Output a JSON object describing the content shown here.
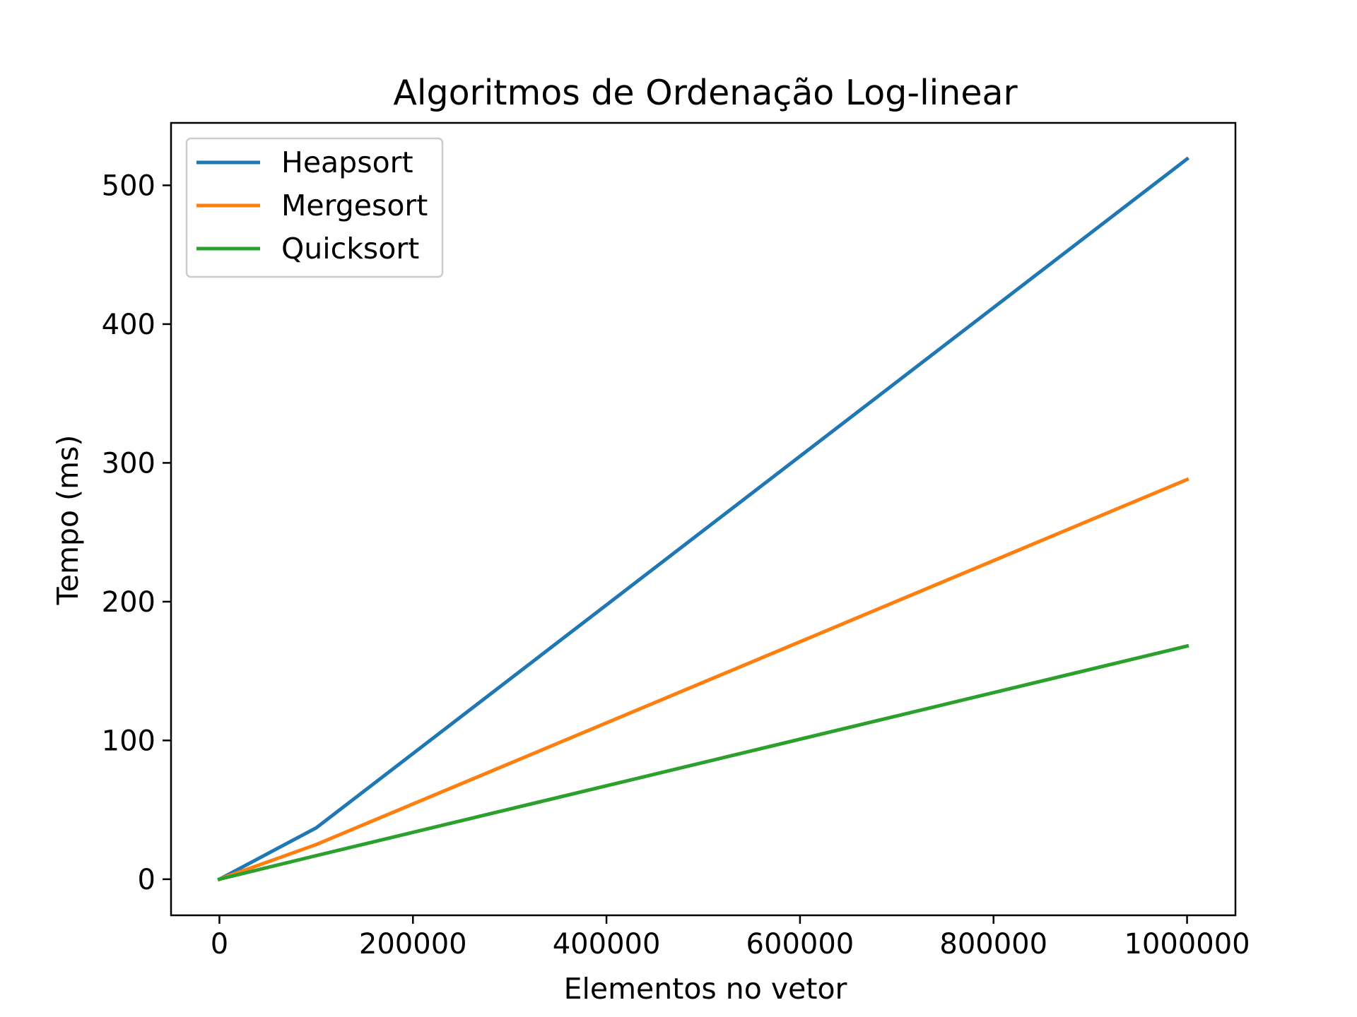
{
  "chart_data": {
    "type": "line",
    "title": "Algoritmos de Ordenação Log-linear",
    "xlabel": "Elementos no vetor",
    "ylabel": "Tempo (ms)",
    "x": [
      0,
      100000,
      1000000
    ],
    "xlim": [
      -50000,
      1050000
    ],
    "ylim": [
      -26,
      545
    ],
    "xticks": [
      0,
      200000,
      400000,
      600000,
      800000,
      1000000
    ],
    "xtick_labels": [
      "0",
      "200000",
      "400000",
      "600000",
      "800000",
      "1000000"
    ],
    "yticks": [
      0,
      100,
      200,
      300,
      400,
      500
    ],
    "ytick_labels": [
      "0",
      "100",
      "200",
      "300",
      "400",
      "500"
    ],
    "grid": false,
    "legend_position": "top-left",
    "series": [
      {
        "name": "Heapsort",
        "color": "#1f77b4",
        "values": [
          0,
          37,
          519
        ]
      },
      {
        "name": "Mergesort",
        "color": "#ff7f0e",
        "values": [
          0,
          25,
          288
        ]
      },
      {
        "name": "Quicksort",
        "color": "#2ca02c",
        "values": [
          0,
          17,
          168
        ]
      }
    ]
  }
}
